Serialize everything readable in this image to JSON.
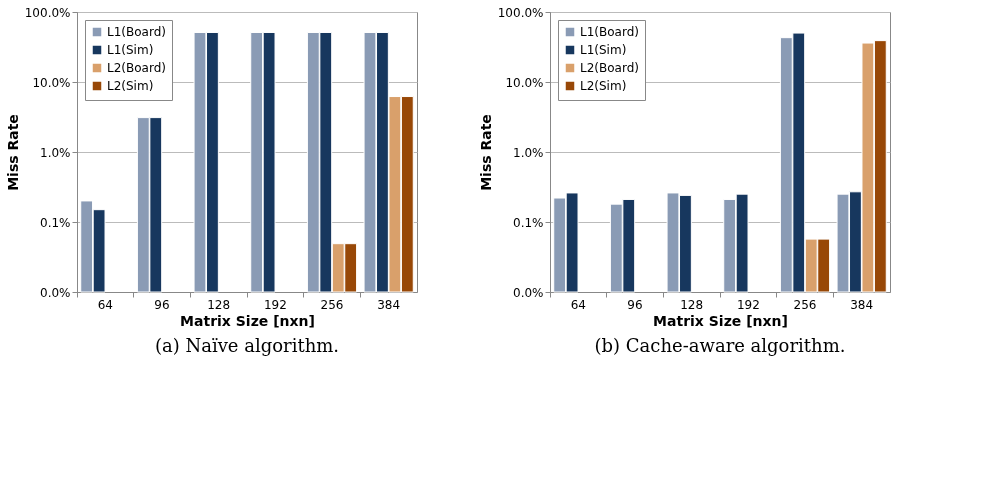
{
  "chart_data": [
    {
      "type": "bar",
      "annotations": [
        "(a) Naïve algorithm."
      ],
      "xlabel": "Matrix Size [nxn]",
      "ylabel": "Miss Rate",
      "categories": [
        "64",
        "96",
        "128",
        "192",
        "256",
        "384"
      ],
      "log": true,
      "grid": "y",
      "legend": "top left",
      "ylim": [
        0.01,
        100
      ],
      "yticks": [
        {
          "value": 0.01,
          "label": "0.0%"
        },
        {
          "value": 0.1,
          "label": "0.1%"
        },
        {
          "value": 1,
          "label": "1.0%"
        },
        {
          "value": 10,
          "label": "10.0%"
        },
        {
          "value": 100,
          "label": "100.0%"
        }
      ],
      "series": [
        {
          "name": "L1(Board)",
          "color": "#8a9bb5",
          "values": [
            0.2,
            3.1,
            51,
            51,
            51,
            51
          ]
        },
        {
          "name": "L1(Sim)",
          "color": "#17375e",
          "values": [
            0.15,
            3.1,
            51,
            51,
            51,
            51
          ]
        },
        {
          "name": "L2(Board)",
          "color": "#d9a06b",
          "values": [
            null,
            null,
            null,
            null,
            0.049,
            6.2
          ]
        },
        {
          "name": "L2(Sim)",
          "color": "#984807",
          "values": [
            null,
            null,
            null,
            null,
            0.049,
            6.2
          ]
        }
      ]
    },
    {
      "type": "bar",
      "annotations": [
        "(b) Cache-aware algorithm."
      ],
      "xlabel": "Matrix Size [nxn]",
      "ylabel": "Miss Rate",
      "categories": [
        "64",
        "96",
        "128",
        "192",
        "256",
        "384"
      ],
      "log": true,
      "grid": "y",
      "legend": "top left",
      "ylim": [
        0.01,
        100
      ],
      "yticks": [
        {
          "value": 0.01,
          "label": "0.0%"
        },
        {
          "value": 0.1,
          "label": "0.1%"
        },
        {
          "value": 1,
          "label": "1.0%"
        },
        {
          "value": 10,
          "label": "10.0%"
        },
        {
          "value": 100,
          "label": "100.0%"
        }
      ],
      "series": [
        {
          "name": "L1(Board)",
          "color": "#8a9bb5",
          "values": [
            0.22,
            0.18,
            0.26,
            0.21,
            43,
            0.25
          ]
        },
        {
          "name": "L1(Sim)",
          "color": "#17375e",
          "values": [
            0.26,
            0.21,
            0.24,
            0.25,
            50,
            0.27
          ]
        },
        {
          "name": "L2(Board)",
          "color": "#d9a06b",
          "values": [
            null,
            null,
            null,
            null,
            0.057,
            36
          ]
        },
        {
          "name": "L2(Sim)",
          "color": "#984807",
          "values": [
            null,
            null,
            null,
            null,
            0.057,
            39
          ]
        }
      ]
    }
  ]
}
